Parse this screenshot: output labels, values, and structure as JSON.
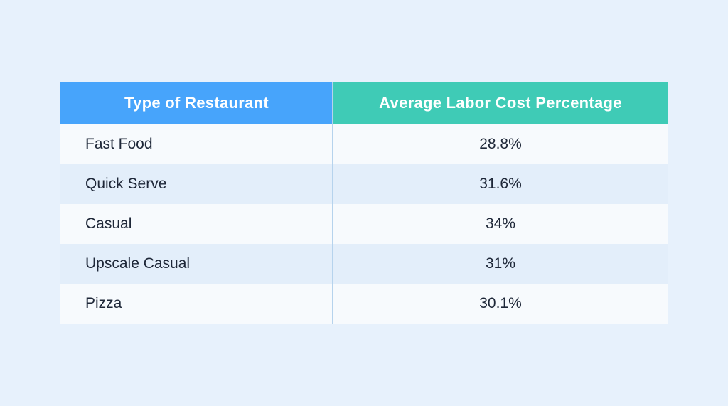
{
  "page": {
    "background_color": "#e7f1fc"
  },
  "table": {
    "header": {
      "col1": "Type of Restaurant",
      "col2": "Average Labor Cost Percentage",
      "col1_bg": "#47a4fb",
      "col2_bg": "#3fcbb6",
      "text_color": "#ffffff"
    },
    "rows": [
      {
        "type": "Fast Food",
        "value": "28.8%"
      },
      {
        "type": "Quick Serve",
        "value": "31.6%"
      },
      {
        "type": "Casual",
        "value": "34%"
      },
      {
        "type": "Upscale Casual",
        "value": "31%"
      },
      {
        "type": "Pizza",
        "value": "30.1%"
      }
    ],
    "row_bg_odd": "#f7fafd",
    "row_bg_even": "#e3eefa",
    "divider_color": "#b6d3ed",
    "body_text_color": "#1e2738"
  },
  "chart_data": {
    "type": "table",
    "columns": [
      "Type of Restaurant",
      "Average Labor Cost Percentage"
    ],
    "categories": [
      "Fast Food",
      "Quick Serve",
      "Casual",
      "Upscale Casual",
      "Pizza"
    ],
    "values": [
      28.8,
      31.6,
      34,
      31,
      30.1
    ],
    "title": "",
    "xlabel": "",
    "ylabel": ""
  }
}
